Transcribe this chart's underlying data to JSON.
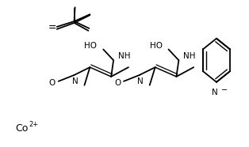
{
  "background_color": "#ffffff",
  "line_color": "#000000",
  "text_color": "#000000",
  "figsize": [
    3.14,
    1.86
  ],
  "dpi": 100,
  "xlim": [
    0,
    314
  ],
  "ylim": [
    0,
    186
  ]
}
